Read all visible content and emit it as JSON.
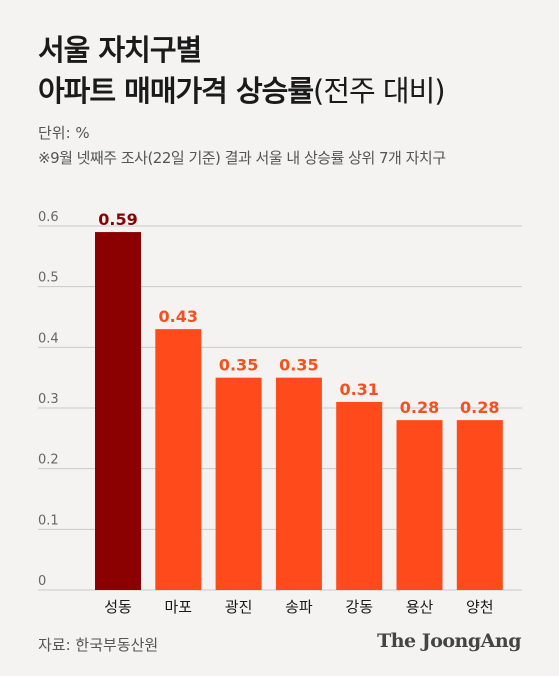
{
  "header": {
    "title_line1": "서울 자치구별",
    "title_line2_bold": "아파트 매매가격 상승률",
    "title_line2_light": "(전주 대비)",
    "unit": "단위: %",
    "note": "※9월 넷째주 조사(22일 기준) 결과 서울 내 상승률 상위 7개 자치구"
  },
  "footer": {
    "source": "자료: 한국부동산원",
    "brand": "The JoongAng"
  },
  "colors": {
    "highlight": "#8b0000",
    "bar": "#ff4a1c",
    "label": "#f5511e",
    "grid": "#c8c8c8"
  },
  "chart_data": {
    "type": "bar",
    "categories": [
      "성동",
      "마포",
      "광진",
      "송파",
      "강동",
      "용산",
      "양천"
    ],
    "values": [
      0.59,
      0.43,
      0.35,
      0.35,
      0.31,
      0.28,
      0.28
    ],
    "value_labels": [
      "0.59",
      "0.43",
      "0.35",
      "0.35",
      "0.31",
      "0.28",
      "0.28"
    ],
    "yticks": [
      "0",
      "0.1",
      "0.2",
      "0.3",
      "0.4",
      "0.5",
      "0.6"
    ],
    "ylim": [
      0,
      0.6
    ],
    "grid": true,
    "highlight_index": 0
  }
}
